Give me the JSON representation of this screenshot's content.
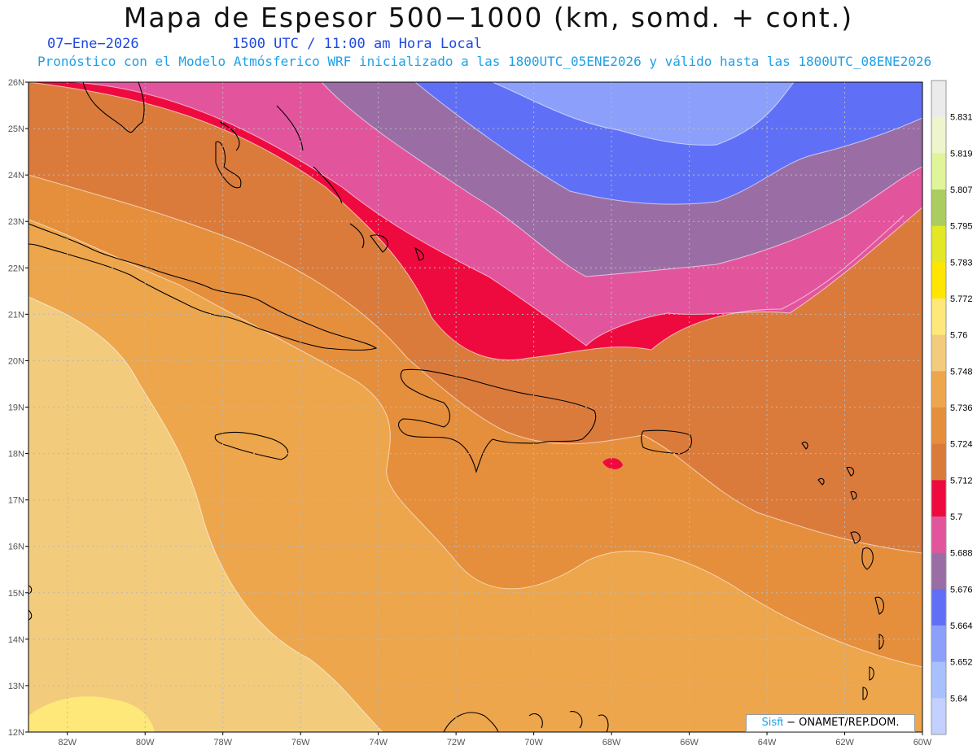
{
  "title": "Mapa de Espesor 500−1000 (km, somd. + cont.)",
  "valid_date": "07−Ene−2026",
  "valid_time": "1500 UTC / 11:00 am Hora Local",
  "description": "Pronóstico con el Modelo Atmósferico WRF inicializado a las 1800UTC_05ENE2026 y válido hasta las  1800UTC_08ENE2026",
  "credit": {
    "brand": "Sisπ̃",
    "text": " − ONAMET/REP.DOM."
  },
  "map": {
    "lat_labels": [
      "26N",
      "25N",
      "24N",
      "23N",
      "22N",
      "21N",
      "20N",
      "19N",
      "18N",
      "17N",
      "16N",
      "15N",
      "14N",
      "13N",
      "12N"
    ],
    "lon_labels": [
      "82W",
      "80W",
      "78W",
      "76W",
      "74W",
      "72W",
      "70W",
      "68W",
      "66W",
      "64W",
      "62W",
      "60W"
    ],
    "lat_range": [
      12,
      26
    ],
    "lon_range": [
      -83,
      -60
    ],
    "grid": true
  },
  "colorbar": {
    "labels": [
      "5.831",
      "5.819",
      "5.807",
      "5.795",
      "5.783",
      "5.772",
      "5.76",
      "5.748",
      "5.736",
      "5.724",
      "5.712",
      "5.7",
      "5.688",
      "5.676",
      "5.664",
      "5.652",
      "5.64"
    ],
    "colors": [
      "#ebebeb",
      "#eef4cc",
      "#e0f49a",
      "#aacc60",
      "#e2e826",
      "#ffe600",
      "#ffe87a",
      "#f2cb7d",
      "#eda64c",
      "#e58f3d",
      "#da7b3c",
      "#ee0a3f",
      "#e2559d",
      "#9a6ea4",
      "#6070f6",
      "#8ca0fb",
      "#a8c0fe",
      "#c4d0ff"
    ]
  },
  "fields": {
    "colors": {
      "lightblue": "#8ca0fb",
      "blue": "#6070f6",
      "purple": "#9a6ea4",
      "pink": "#e2559d",
      "red": "#ee0a3f",
      "brown": "#da7b3c",
      "orange": "#e58f3d",
      "lightorange": "#eda64c",
      "tan": "#f2cb7d",
      "yellow": "#ffe87a"
    }
  }
}
